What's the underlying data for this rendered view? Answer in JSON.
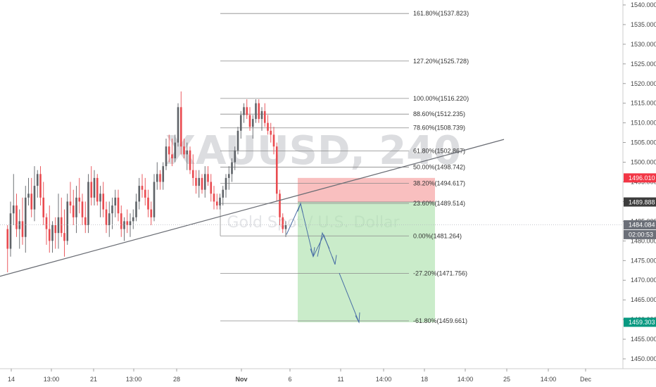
{
  "chart_data": {
    "type": "candlestick",
    "symbol_watermark": "XAUUSD, 240",
    "symbol_watermark_sub": "Gold Spot / U.S. Dollar",
    "ylim": [
      1447,
      1541
    ],
    "y_ticks": [
      "1540.000",
      "1535.000",
      "1530.000",
      "1525.000",
      "1520.000",
      "1515.000",
      "1510.000",
      "1505.000",
      "1500.000",
      "1495.000",
      "1490.000",
      "1485.000",
      "1480.000",
      "1475.000",
      "1470.000",
      "1465.000",
      "1460.000",
      "1455.000",
      "1450.000"
    ],
    "x_ticks": [
      "14",
      "13:00",
      "21",
      "13:00",
      "28",
      "Nov",
      "6",
      "11",
      "14:00",
      "18",
      "14:00",
      "25",
      "14:00",
      "Dec"
    ],
    "x_tick_bold": "Nov",
    "fibonacci": [
      {
        "label": "161.80%(1537.823)",
        "value": 1537.823
      },
      {
        "label": "127.20%(1525.728)",
        "value": 1525.728
      },
      {
        "label": "100.00%(1516.220)",
        "value": 1516.22
      },
      {
        "label": "88.60%(1512.235)",
        "value": 1512.235
      },
      {
        "label": "78.60%(1508.739)",
        "value": 1508.739
      },
      {
        "label": "61.80%(1502.867)",
        "value": 1502.867
      },
      {
        "label": "50.00%(1498.742)",
        "value": 1498.742
      },
      {
        "label": "38.20%(1494.617)",
        "value": 1494.617
      },
      {
        "label": "23.60%(1489.514)",
        "value": 1489.514
      },
      {
        "label": "0.00%(1481.264)",
        "value": 1481.264
      },
      {
        "label": "-27.20%(1471.756)",
        "value": 1471.756
      },
      {
        "label": "-61.80%(1459.661)",
        "value": 1459.661
      }
    ],
    "price_labels": [
      {
        "text": "1496.010",
        "value": 1496.01,
        "bg": "#f23645",
        "fg": "#ffffff"
      },
      {
        "text": "1489.888",
        "value": 1489.888,
        "bg": "#3c3c3c",
        "fg": "#ffffff"
      },
      {
        "text": "1484.084",
        "value": 1484.084,
        "bg": "#6b6f78",
        "fg": "#ffffff"
      },
      {
        "text": "02:00:53",
        "value": 1481.6,
        "bg": "#6b6f78",
        "fg": "#ffffff"
      },
      {
        "text": "1459.303",
        "value": 1459.303,
        "bg": "#089981",
        "fg": "#ffffff"
      }
    ],
    "position": {
      "entry": 1489.888,
      "stop": 1496.01,
      "target": 1459.303
    },
    "trendline": [
      {
        "x": 0,
        "y": 1471.0
      },
      {
        "x": 716,
        "y": 1505.8
      }
    ],
    "candles": [
      [
        1483,
        1484,
        1472,
        1478
      ],
      [
        1478,
        1490,
        1476,
        1487
      ],
      [
        1487,
        1497,
        1484,
        1489
      ],
      [
        1489,
        1492,
        1481,
        1483
      ],
      [
        1483,
        1488,
        1478,
        1485
      ],
      [
        1485,
        1491,
        1479,
        1481
      ],
      [
        1481,
        1494,
        1477,
        1491
      ],
      [
        1491,
        1496,
        1489,
        1492
      ],
      [
        1492,
        1496,
        1486,
        1488
      ],
      [
        1488,
        1499,
        1485,
        1494
      ],
      [
        1494,
        1498,
        1491,
        1497
      ],
      [
        1497,
        1499,
        1489,
        1491
      ],
      [
        1491,
        1495,
        1484,
        1486
      ],
      [
        1486,
        1487,
        1479,
        1483
      ],
      [
        1483,
        1489,
        1477,
        1480
      ],
      [
        1480,
        1485,
        1477,
        1484
      ],
      [
        1484,
        1486,
        1478,
        1482
      ],
      [
        1482,
        1492,
        1478,
        1486
      ],
      [
        1486,
        1491,
        1481,
        1482
      ],
      [
        1482,
        1488,
        1476,
        1480
      ],
      [
        1480,
        1492,
        1479,
        1490
      ],
      [
        1490,
        1495,
        1487,
        1489
      ],
      [
        1489,
        1493,
        1484,
        1486
      ],
      [
        1486,
        1494,
        1482,
        1491
      ],
      [
        1491,
        1496,
        1487,
        1490
      ],
      [
        1490,
        1492,
        1484,
        1486
      ],
      [
        1486,
        1490,
        1482,
        1484
      ],
      [
        1484,
        1497,
        1482,
        1495
      ],
      [
        1495,
        1499,
        1489,
        1491
      ],
      [
        1491,
        1498,
        1489,
        1496
      ],
      [
        1496,
        1497,
        1489,
        1490
      ],
      [
        1490,
        1494,
        1486,
        1492
      ],
      [
        1492,
        1495,
        1486,
        1488
      ],
      [
        1488,
        1490,
        1482,
        1484
      ],
      [
        1484,
        1490,
        1481,
        1487
      ],
      [
        1487,
        1491,
        1483,
        1489
      ],
      [
        1489,
        1493,
        1486,
        1491
      ],
      [
        1491,
        1493,
        1485,
        1487
      ],
      [
        1487,
        1489,
        1481,
        1483
      ],
      [
        1483,
        1486,
        1480,
        1485
      ],
      [
        1485,
        1488,
        1482,
        1484
      ],
      [
        1484,
        1487,
        1481,
        1485
      ],
      [
        1485,
        1488,
        1483,
        1486
      ],
      [
        1486,
        1492,
        1485,
        1490
      ],
      [
        1490,
        1496,
        1488,
        1494
      ],
      [
        1494,
        1497,
        1491,
        1493
      ],
      [
        1493,
        1496,
        1489,
        1491
      ],
      [
        1491,
        1493,
        1486,
        1488
      ],
      [
        1488,
        1490,
        1484,
        1486
      ],
      [
        1486,
        1497,
        1485,
        1495
      ],
      [
        1495,
        1500,
        1493,
        1497
      ],
      [
        1497,
        1498,
        1493,
        1495
      ],
      [
        1495,
        1500,
        1493,
        1499
      ],
      [
        1499,
        1506,
        1498,
        1504
      ],
      [
        1504,
        1507,
        1500,
        1502
      ],
      [
        1502,
        1506,
        1499,
        1501
      ],
      [
        1501,
        1507,
        1500,
        1505
      ],
      [
        1505,
        1515,
        1504,
        1514
      ],
      [
        1514,
        1518,
        1502,
        1504
      ],
      [
        1504,
        1506,
        1501,
        1502
      ],
      [
        1502,
        1505,
        1498,
        1503
      ],
      [
        1503,
        1504,
        1497,
        1498
      ],
      [
        1498,
        1502,
        1494,
        1496
      ],
      [
        1496,
        1498,
        1492,
        1494
      ],
      [
        1494,
        1498,
        1491,
        1496
      ],
      [
        1496,
        1497,
        1492,
        1493
      ],
      [
        1493,
        1499,
        1491,
        1497
      ],
      [
        1497,
        1499,
        1494,
        1495
      ],
      [
        1495,
        1497,
        1490,
        1492
      ],
      [
        1492,
        1494,
        1488,
        1490
      ],
      [
        1490,
        1492,
        1488,
        1489
      ],
      [
        1489,
        1492,
        1488,
        1491
      ],
      [
        1491,
        1494,
        1489,
        1493
      ],
      [
        1493,
        1497,
        1491,
        1496
      ],
      [
        1496,
        1499,
        1493,
        1497
      ],
      [
        1497,
        1501,
        1495,
        1500
      ],
      [
        1500,
        1504,
        1498,
        1503
      ],
      [
        1503,
        1509,
        1502,
        1508
      ],
      [
        1508,
        1513,
        1506,
        1512
      ],
      [
        1512,
        1515,
        1510,
        1514
      ],
      [
        1514,
        1516,
        1511,
        1512
      ],
      [
        1512,
        1514,
        1508,
        1509
      ],
      [
        1509,
        1512,
        1506,
        1511
      ],
      [
        1511,
        1516,
        1510,
        1515
      ],
      [
        1515,
        1516,
        1510,
        1511
      ],
      [
        1511,
        1514,
        1508,
        1513
      ],
      [
        1513,
        1515,
        1509,
        1510
      ],
      [
        1510,
        1512,
        1507,
        1508
      ],
      [
        1508,
        1510,
        1505,
        1507
      ],
      [
        1507,
        1509,
        1502,
        1504
      ],
      [
        1504,
        1505,
        1490,
        1492
      ],
      [
        1492,
        1493,
        1484,
        1486
      ],
      [
        1486,
        1487,
        1482,
        1483
      ],
      [
        1483,
        1485,
        1481,
        1484
      ]
    ]
  }
}
